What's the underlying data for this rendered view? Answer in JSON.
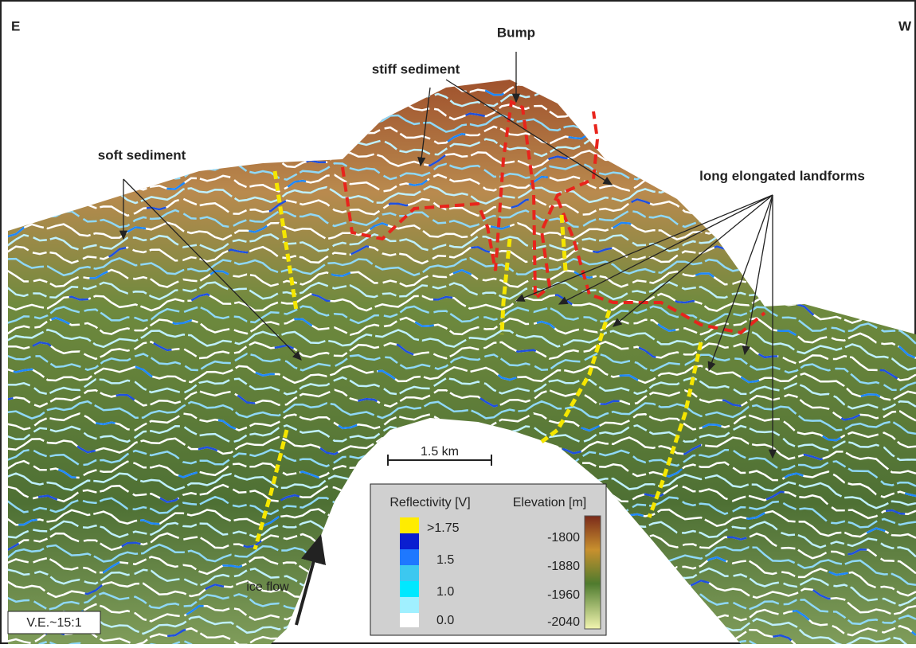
{
  "labels": {
    "east": "E",
    "west": "W",
    "bump": "Bump",
    "stiff_sediment": "stiff sediment",
    "soft_sediment": "soft sediment",
    "landforms": "long elongated landforms",
    "ice_flow": "ice flow",
    "vertical_exaggeration": "V.E.~15:1"
  },
  "scale_bar": {
    "label": "1.5 km"
  },
  "legend": {
    "reflectivity": {
      "title": "Reflectivity [V]",
      "labels": [
        ">1.75",
        "1.5",
        "1.0",
        "0.0"
      ]
    },
    "elevation": {
      "title": "Elevation [m]",
      "labels": [
        "-1800",
        "-1880",
        "-1960",
        "-2040"
      ]
    }
  }
}
